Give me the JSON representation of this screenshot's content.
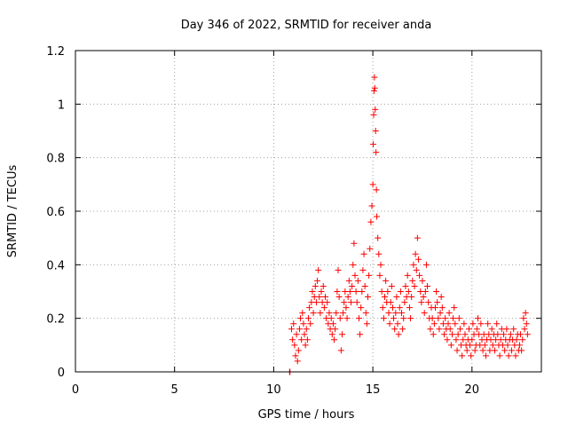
{
  "chart_data": {
    "type": "scatter",
    "title": "Day 346 of 2022, SRMTID for receiver anda",
    "xlabel": "GPS time / hours",
    "ylabel": "SRMTID / TECUs",
    "xlim": [
      0,
      23.5
    ],
    "ylim": [
      0,
      1.2
    ],
    "xticks": [
      0,
      5,
      10,
      15,
      20
    ],
    "yticks": [
      0,
      0.2,
      0.4,
      0.6,
      0.8,
      1,
      1.2
    ],
    "xtick_labels": [
      "0",
      "5",
      "10",
      "15",
      "20"
    ],
    "ytick_labels": [
      "0",
      "0.2",
      "0.4",
      "0.6",
      "0.8",
      "1",
      "1.2"
    ],
    "grid": true,
    "marker": "+",
    "color": "#ff0000",
    "series": [
      {
        "name": "SRMTID",
        "points": [
          [
            10.8,
            0.0
          ],
          [
            10.82,
            0.0
          ],
          [
            10.9,
            0.16
          ],
          [
            10.95,
            0.12
          ],
          [
            11.0,
            0.18
          ],
          [
            11.05,
            0.1
          ],
          [
            11.1,
            0.06
          ],
          [
            11.15,
            0.14
          ],
          [
            11.2,
            0.04
          ],
          [
            11.25,
            0.08
          ],
          [
            11.3,
            0.16
          ],
          [
            11.35,
            0.2
          ],
          [
            11.4,
            0.12
          ],
          [
            11.45,
            0.22
          ],
          [
            11.5,
            0.18
          ],
          [
            11.55,
            0.14
          ],
          [
            11.6,
            0.1
          ],
          [
            11.65,
            0.16
          ],
          [
            11.7,
            0.12
          ],
          [
            11.75,
            0.2
          ],
          [
            11.8,
            0.24
          ],
          [
            11.85,
            0.18
          ],
          [
            11.9,
            0.26
          ],
          [
            11.95,
            0.3
          ],
          [
            12.0,
            0.22
          ],
          [
            12.05,
            0.28
          ],
          [
            12.1,
            0.32
          ],
          [
            12.15,
            0.26
          ],
          [
            12.2,
            0.34
          ],
          [
            12.25,
            0.38
          ],
          [
            12.3,
            0.28
          ],
          [
            12.35,
            0.22
          ],
          [
            12.4,
            0.3
          ],
          [
            12.45,
            0.26
          ],
          [
            12.5,
            0.32
          ],
          [
            12.55,
            0.24
          ],
          [
            12.6,
            0.28
          ],
          [
            12.65,
            0.2
          ],
          [
            12.7,
            0.26
          ],
          [
            12.75,
            0.18
          ],
          [
            12.8,
            0.22
          ],
          [
            12.85,
            0.16
          ],
          [
            12.9,
            0.2
          ],
          [
            12.95,
            0.14
          ],
          [
            13.0,
            0.18
          ],
          [
            13.05,
            0.12
          ],
          [
            13.1,
            0.16
          ],
          [
            13.15,
            0.22
          ],
          [
            13.2,
            0.3
          ],
          [
            13.25,
            0.38
          ],
          [
            13.3,
            0.28
          ],
          [
            13.35,
            0.2
          ],
          [
            13.4,
            0.08
          ],
          [
            13.45,
            0.14
          ],
          [
            13.5,
            0.22
          ],
          [
            13.55,
            0.26
          ],
          [
            13.6,
            0.3
          ],
          [
            13.65,
            0.24
          ],
          [
            13.7,
            0.2
          ],
          [
            13.75,
            0.28
          ],
          [
            13.8,
            0.34
          ],
          [
            13.85,
            0.3
          ],
          [
            13.9,
            0.26
          ],
          [
            13.95,
            0.32
          ],
          [
            14.0,
            0.4
          ],
          [
            14.05,
            0.48
          ],
          [
            14.1,
            0.36
          ],
          [
            14.15,
            0.3
          ],
          [
            14.2,
            0.26
          ],
          [
            14.25,
            0.34
          ],
          [
            14.3,
            0.2
          ],
          [
            14.35,
            0.14
          ],
          [
            14.4,
            0.24
          ],
          [
            14.45,
            0.3
          ],
          [
            14.5,
            0.38
          ],
          [
            14.55,
            0.44
          ],
          [
            14.6,
            0.32
          ],
          [
            14.65,
            0.22
          ],
          [
            14.7,
            0.18
          ],
          [
            14.75,
            0.28
          ],
          [
            14.8,
            0.36
          ],
          [
            14.85,
            0.46
          ],
          [
            14.9,
            0.56
          ],
          [
            14.95,
            0.62
          ],
          [
            15.0,
            0.7
          ],
          [
            15.02,
            0.85
          ],
          [
            15.04,
            0.96
          ],
          [
            15.06,
            1.05
          ],
          [
            15.08,
            1.1
          ],
          [
            15.1,
            1.06
          ],
          [
            15.12,
            0.98
          ],
          [
            15.14,
            0.9
          ],
          [
            15.16,
            0.82
          ],
          [
            15.18,
            0.68
          ],
          [
            15.2,
            0.58
          ],
          [
            15.25,
            0.5
          ],
          [
            15.3,
            0.44
          ],
          [
            15.35,
            0.36
          ],
          [
            15.4,
            0.4
          ],
          [
            15.45,
            0.3
          ],
          [
            15.5,
            0.24
          ],
          [
            15.55,
            0.2
          ],
          [
            15.6,
            0.28
          ],
          [
            15.65,
            0.34
          ],
          [
            15.7,
            0.26
          ],
          [
            15.75,
            0.3
          ],
          [
            15.8,
            0.22
          ],
          [
            15.85,
            0.18
          ],
          [
            15.9,
            0.26
          ],
          [
            15.95,
            0.32
          ],
          [
            16.0,
            0.24
          ],
          [
            16.05,
            0.2
          ],
          [
            16.1,
            0.16
          ],
          [
            16.15,
            0.22
          ],
          [
            16.2,
            0.28
          ],
          [
            16.25,
            0.18
          ],
          [
            16.3,
            0.14
          ],
          [
            16.35,
            0.24
          ],
          [
            16.4,
            0.3
          ],
          [
            16.45,
            0.22
          ],
          [
            16.5,
            0.16
          ],
          [
            16.55,
            0.2
          ],
          [
            16.6,
            0.26
          ],
          [
            16.65,
            0.32
          ],
          [
            16.7,
            0.28
          ],
          [
            16.75,
            0.36
          ],
          [
            16.8,
            0.3
          ],
          [
            16.85,
            0.24
          ],
          [
            16.9,
            0.2
          ],
          [
            16.95,
            0.28
          ],
          [
            17.0,
            0.34
          ],
          [
            17.05,
            0.4
          ],
          [
            17.1,
            0.32
          ],
          [
            17.15,
            0.44
          ],
          [
            17.2,
            0.38
          ],
          [
            17.25,
            0.5
          ],
          [
            17.3,
            0.42
          ],
          [
            17.35,
            0.36
          ],
          [
            17.4,
            0.3
          ],
          [
            17.45,
            0.26
          ],
          [
            17.5,
            0.34
          ],
          [
            17.55,
            0.28
          ],
          [
            17.6,
            0.22
          ],
          [
            17.65,
            0.3
          ],
          [
            17.7,
            0.4
          ],
          [
            17.75,
            0.32
          ],
          [
            17.8,
            0.26
          ],
          [
            17.85,
            0.2
          ],
          [
            17.9,
            0.16
          ],
          [
            17.95,
            0.24
          ],
          [
            18.0,
            0.2
          ],
          [
            18.05,
            0.14
          ],
          [
            18.1,
            0.18
          ],
          [
            18.15,
            0.24
          ],
          [
            18.2,
            0.3
          ],
          [
            18.25,
            0.26
          ],
          [
            18.3,
            0.2
          ],
          [
            18.35,
            0.16
          ],
          [
            18.4,
            0.22
          ],
          [
            18.45,
            0.28
          ],
          [
            18.5,
            0.24
          ],
          [
            18.55,
            0.18
          ],
          [
            18.6,
            0.14
          ],
          [
            18.65,
            0.2
          ],
          [
            18.7,
            0.16
          ],
          [
            18.75,
            0.12
          ],
          [
            18.8,
            0.18
          ],
          [
            18.85,
            0.22
          ],
          [
            18.9,
            0.16
          ],
          [
            18.95,
            0.1
          ],
          [
            19.0,
            0.14
          ],
          [
            19.05,
            0.2
          ],
          [
            19.1,
            0.24
          ],
          [
            19.15,
            0.18
          ],
          [
            19.2,
            0.12
          ],
          [
            19.25,
            0.08
          ],
          [
            19.3,
            0.14
          ],
          [
            19.35,
            0.2
          ],
          [
            19.4,
            0.16
          ],
          [
            19.45,
            0.1
          ],
          [
            19.5,
            0.06
          ],
          [
            19.55,
            0.12
          ],
          [
            19.6,
            0.18
          ],
          [
            19.65,
            0.14
          ],
          [
            19.7,
            0.1
          ],
          [
            19.75,
            0.08
          ],
          [
            19.8,
            0.12
          ],
          [
            19.85,
            0.16
          ],
          [
            19.9,
            0.1
          ],
          [
            19.95,
            0.06
          ],
          [
            20.0,
            0.12
          ],
          [
            20.05,
            0.18
          ],
          [
            20.1,
            0.14
          ],
          [
            20.15,
            0.08
          ],
          [
            20.2,
            0.1
          ],
          [
            20.25,
            0.16
          ],
          [
            20.3,
            0.2
          ],
          [
            20.35,
            0.14
          ],
          [
            20.4,
            0.1
          ],
          [
            20.45,
            0.18
          ],
          [
            20.5,
            0.12
          ],
          [
            20.55,
            0.08
          ],
          [
            20.6,
            0.14
          ],
          [
            20.65,
            0.1
          ],
          [
            20.7,
            0.06
          ],
          [
            20.75,
            0.12
          ],
          [
            20.8,
            0.18
          ],
          [
            20.85,
            0.14
          ],
          [
            20.9,
            0.08
          ],
          [
            20.95,
            0.12
          ],
          [
            21.0,
            0.16
          ],
          [
            21.05,
            0.1
          ],
          [
            21.1,
            0.14
          ],
          [
            21.15,
            0.08
          ],
          [
            21.2,
            0.12
          ],
          [
            21.25,
            0.18
          ],
          [
            21.3,
            0.14
          ],
          [
            21.35,
            0.1
          ],
          [
            21.4,
            0.06
          ],
          [
            21.45,
            0.12
          ],
          [
            21.5,
            0.16
          ],
          [
            21.55,
            0.1
          ],
          [
            21.6,
            0.14
          ],
          [
            21.65,
            0.08
          ],
          [
            21.7,
            0.12
          ],
          [
            21.75,
            0.16
          ],
          [
            21.8,
            0.1
          ],
          [
            21.85,
            0.06
          ],
          [
            21.9,
            0.12
          ],
          [
            21.95,
            0.14
          ],
          [
            22.0,
            0.08
          ],
          [
            22.05,
            0.12
          ],
          [
            22.1,
            0.16
          ],
          [
            22.15,
            0.1
          ],
          [
            22.2,
            0.06
          ],
          [
            22.25,
            0.12
          ],
          [
            22.3,
            0.14
          ],
          [
            22.35,
            0.08
          ],
          [
            22.4,
            0.1
          ],
          [
            22.45,
            0.14
          ],
          [
            22.5,
            0.08
          ],
          [
            22.55,
            0.12
          ],
          [
            22.6,
            0.2
          ],
          [
            22.65,
            0.16
          ],
          [
            22.7,
            0.22
          ],
          [
            22.75,
            0.18
          ],
          [
            22.8,
            0.14
          ]
        ]
      }
    ]
  }
}
